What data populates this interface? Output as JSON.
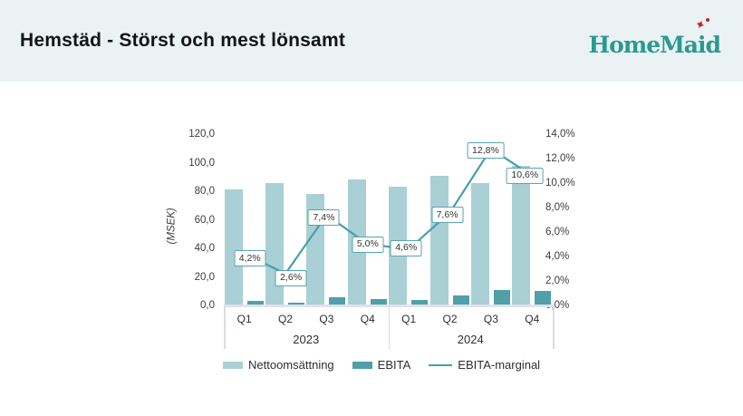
{
  "header": {
    "title": "Hemstäd - Störst och mest lönsamt",
    "logo_text": "HomeMaid",
    "logo_star_glyph": "✦",
    "logo_color": "#2a9a8f",
    "star_color": "#cc2128",
    "background": "#eaf2f4"
  },
  "chart_data": {
    "type": "bar",
    "subtype": "bar-line-combo",
    "categories": [
      "Q1",
      "Q2",
      "Q3",
      "Q4",
      "Q1",
      "Q2",
      "Q3",
      "Q4"
    ],
    "year_groups": [
      {
        "label": "2023",
        "span": 4
      },
      {
        "label": "2024",
        "span": 4
      }
    ],
    "series": [
      {
        "name": "Nettoomsättning",
        "type": "bar",
        "axis": "left",
        "color": "#a9d0d4",
        "values": [
          81,
          86,
          78,
          88,
          83,
          91,
          86,
          98
        ]
      },
      {
        "name": "EBITA",
        "type": "bar",
        "axis": "left",
        "color": "#4fa0a8",
        "values": [
          3.4,
          2.2,
          5.8,
          4.4,
          3.8,
          6.9,
          11.0,
          10.4
        ]
      },
      {
        "name": "EBITA-marginal",
        "type": "line",
        "axis": "right",
        "color": "#48a0a8",
        "values": [
          4.2,
          2.6,
          7.4,
          5.0,
          4.6,
          7.6,
          12.8,
          10.6
        ],
        "point_labels": [
          "4,2%",
          "2,6%",
          "7,4%",
          "5,0%",
          "4,6%",
          "7,6%",
          "12,8%",
          "10,6%"
        ]
      }
    ],
    "left_axis": {
      "title": "(MSEK)",
      "min": 0,
      "max": 120,
      "step": 20,
      "tick_labels": [
        "0,0",
        "20,0",
        "40,0",
        "60,0",
        "80,0",
        "100,0",
        "120,0"
      ]
    },
    "right_axis": {
      "min": 0,
      "max": 14,
      "step": 2,
      "tick_labels": [
        "0,0%",
        "2,0%",
        "4,0%",
        "6,0%",
        "8,0%",
        "10,0%",
        "12,0%",
        "14,0%"
      ]
    },
    "grid": false,
    "legend_position": "bottom",
    "legend": [
      {
        "label": "Nettoomsättning",
        "swatch": "bar",
        "color": "#a9d0d4"
      },
      {
        "label": "EBITA",
        "swatch": "bar",
        "color": "#4fa0a8"
      },
      {
        "label": "EBITA-marginal",
        "swatch": "line",
        "color": "#48a0a8"
      }
    ]
  }
}
